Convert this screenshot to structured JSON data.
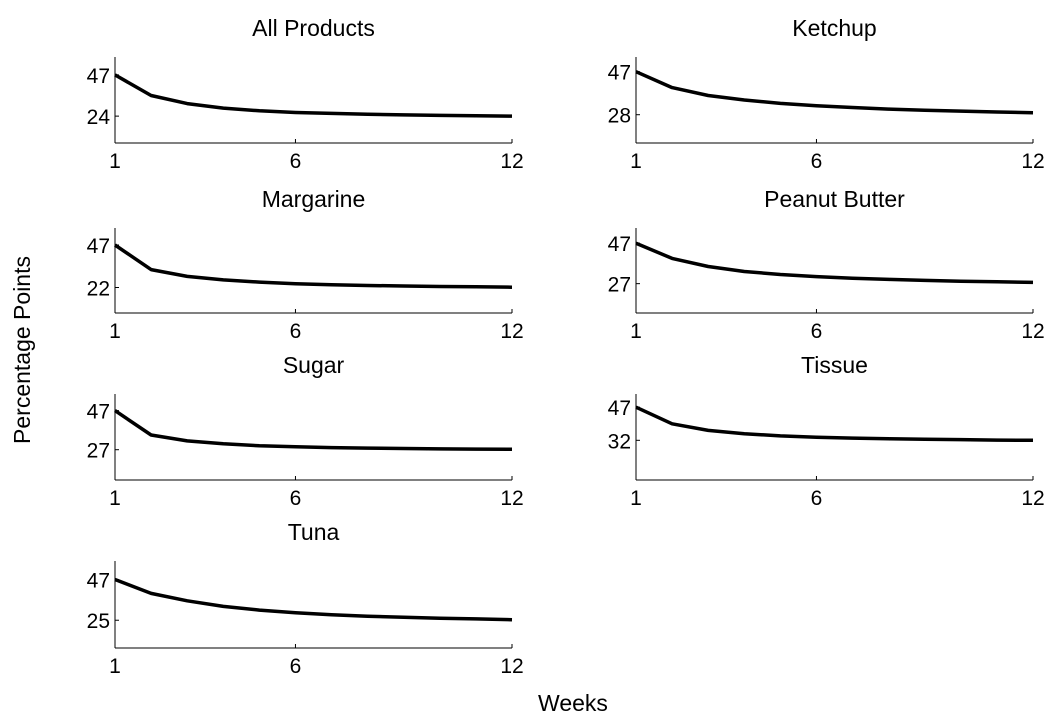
{
  "figure": {
    "xlabel": "Weeks",
    "ylabel": "Percentage Points"
  },
  "chart_data": [
    {
      "type": "line",
      "title": "All Products",
      "x": [
        1,
        2,
        3,
        4,
        5,
        6,
        7,
        8,
        9,
        10,
        11,
        12
      ],
      "series": [
        {
          "values": [
            47,
            35.5,
            31,
            28.5,
            27,
            26,
            25.5,
            25,
            24.7,
            24.4,
            24.2,
            24
          ]
        }
      ],
      "xticks": [
        1,
        6,
        12
      ],
      "yticks": [
        24,
        47
      ],
      "xlim": [
        1,
        12
      ],
      "ylim": [
        9,
        57
      ],
      "grid": false
    },
    {
      "type": "line",
      "title": "Ketchup",
      "x": [
        1,
        2,
        3,
        4,
        5,
        6,
        7,
        8,
        9,
        10,
        11,
        12
      ],
      "series": [
        {
          "values": [
            47,
            40,
            36.5,
            34.5,
            33,
            32,
            31.2,
            30.5,
            30,
            29.6,
            29.2,
            28.9
          ]
        }
      ],
      "xticks": [
        1,
        6,
        12
      ],
      "yticks": [
        28,
        47
      ],
      "xlim": [
        1,
        12
      ],
      "ylim": [
        15.5,
        53.5
      ],
      "grid": false
    },
    {
      "type": "line",
      "title": "Margarine",
      "x": [
        1,
        2,
        3,
        4,
        5,
        6,
        7,
        8,
        9,
        10,
        11,
        12
      ],
      "series": [
        {
          "values": [
            47,
            32.5,
            28.5,
            26.5,
            25.2,
            24.2,
            23.6,
            23.2,
            22.9,
            22.6,
            22.4,
            22.2
          ]
        }
      ],
      "xticks": [
        1,
        6,
        12
      ],
      "yticks": [
        22,
        47
      ],
      "xlim": [
        1,
        12
      ],
      "ylim": [
        7,
        57
      ],
      "grid": false
    },
    {
      "type": "line",
      "title": "Peanut Butter",
      "x": [
        1,
        2,
        3,
        4,
        5,
        6,
        7,
        8,
        9,
        10,
        11,
        12
      ],
      "series": [
        {
          "values": [
            47,
            39.5,
            35.5,
            33,
            31.5,
            30.5,
            29.7,
            29.1,
            28.6,
            28.2,
            27.9,
            27.6
          ]
        }
      ],
      "xticks": [
        1,
        6,
        12
      ],
      "yticks": [
        27,
        47
      ],
      "xlim": [
        1,
        12
      ],
      "ylim": [
        12.5,
        54.5
      ],
      "grid": false
    },
    {
      "type": "line",
      "title": "Sugar",
      "x": [
        1,
        2,
        3,
        4,
        5,
        6,
        7,
        8,
        9,
        10,
        11,
        12
      ],
      "series": [
        {
          "values": [
            47,
            34.5,
            31.5,
            30,
            29,
            28.5,
            28.1,
            27.8,
            27.6,
            27.4,
            27.3,
            27.2
          ]
        }
      ],
      "xticks": [
        1,
        6,
        12
      ],
      "yticks": [
        27,
        47
      ],
      "xlim": [
        1,
        12
      ],
      "ylim": [
        11.5,
        55.5
      ],
      "grid": false
    },
    {
      "type": "line",
      "title": "Tissue",
      "x": [
        1,
        2,
        3,
        4,
        5,
        6,
        7,
        8,
        9,
        10,
        11,
        12
      ],
      "series": [
        {
          "values": [
            47,
            39.5,
            36.5,
            35,
            34,
            33.4,
            33,
            32.7,
            32.5,
            32.3,
            32.1,
            32
          ]
        }
      ],
      "xticks": [
        1,
        6,
        12
      ],
      "yticks": [
        32,
        47
      ],
      "xlim": [
        1,
        12
      ],
      "ylim": [
        14,
        53
      ],
      "grid": false
    },
    {
      "type": "line",
      "title": "Tuna",
      "x": [
        1,
        2,
        3,
        4,
        5,
        6,
        7,
        8,
        9,
        10,
        11,
        12
      ],
      "series": [
        {
          "values": [
            47,
            39.5,
            35.5,
            32.5,
            30.5,
            29,
            28,
            27.2,
            26.6,
            26.1,
            25.7,
            25.3
          ]
        }
      ],
      "xticks": [
        1,
        6,
        12
      ],
      "yticks": [
        25,
        47
      ],
      "xlim": [
        1,
        12
      ],
      "ylim": [
        10,
        57
      ],
      "grid": false
    }
  ]
}
